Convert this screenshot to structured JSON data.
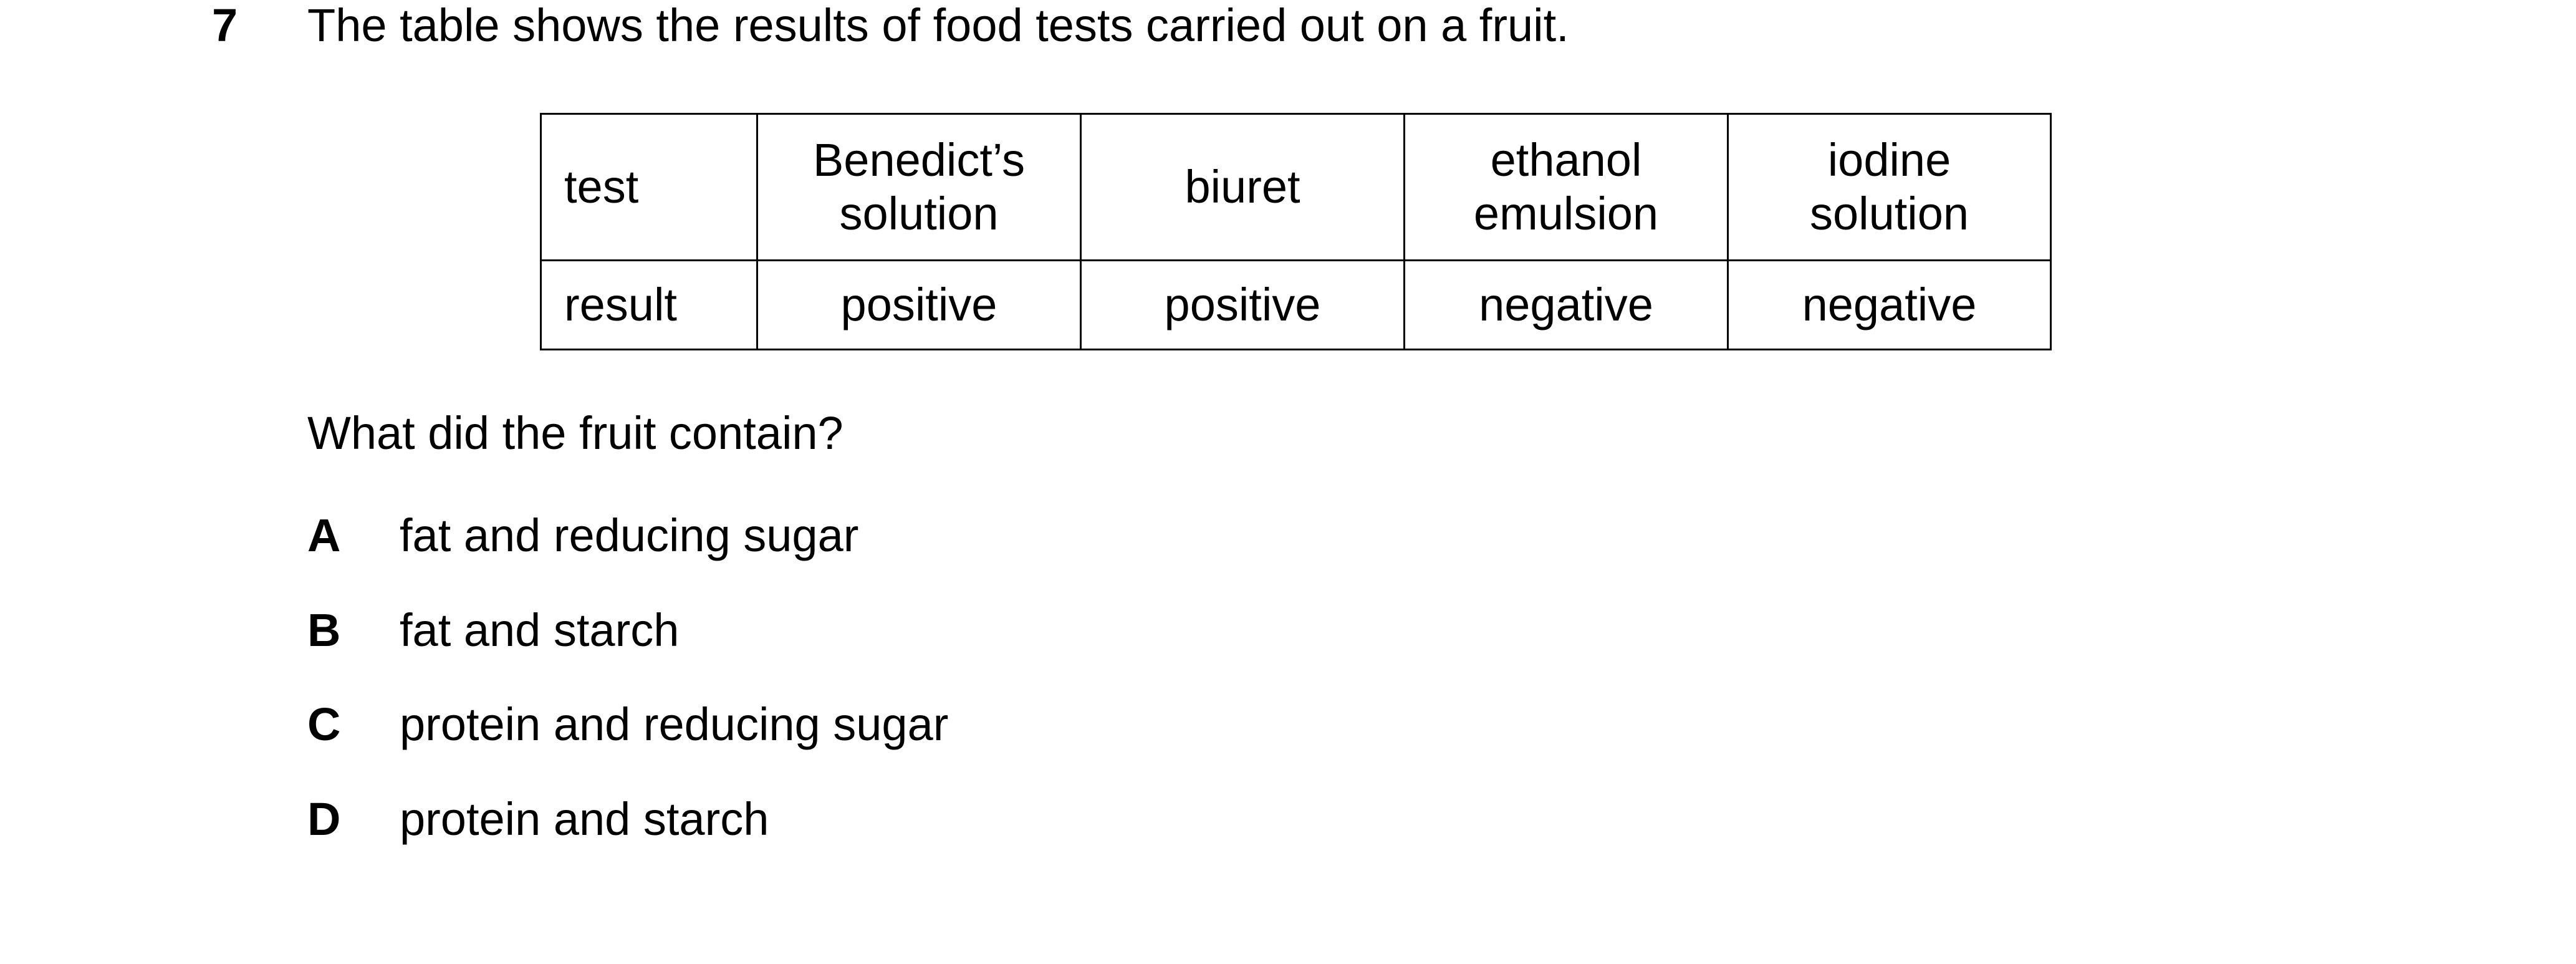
{
  "question": {
    "number": "7",
    "stem": "The table shows the results of food tests carried out on a fruit.",
    "prompt": "What did the fruit contain?"
  },
  "table": {
    "row_headers": [
      "test",
      "result"
    ],
    "tests": [
      {
        "name_line1": "Benedict’s",
        "name_line2": "solution",
        "result": "positive"
      },
      {
        "name_line1": "biuret",
        "name_line2": "",
        "result": "positive"
      },
      {
        "name_line1": "ethanol",
        "name_line2": "emulsion",
        "result": "negative"
      },
      {
        "name_line1": "iodine",
        "name_line2": "solution",
        "result": "negative"
      }
    ]
  },
  "options": [
    {
      "letter": "A",
      "text": "fat and reducing sugar"
    },
    {
      "letter": "B",
      "text": "fat and starch"
    },
    {
      "letter": "C",
      "text": "protein and reducing sugar"
    },
    {
      "letter": "D",
      "text": "protein and starch"
    }
  ]
}
